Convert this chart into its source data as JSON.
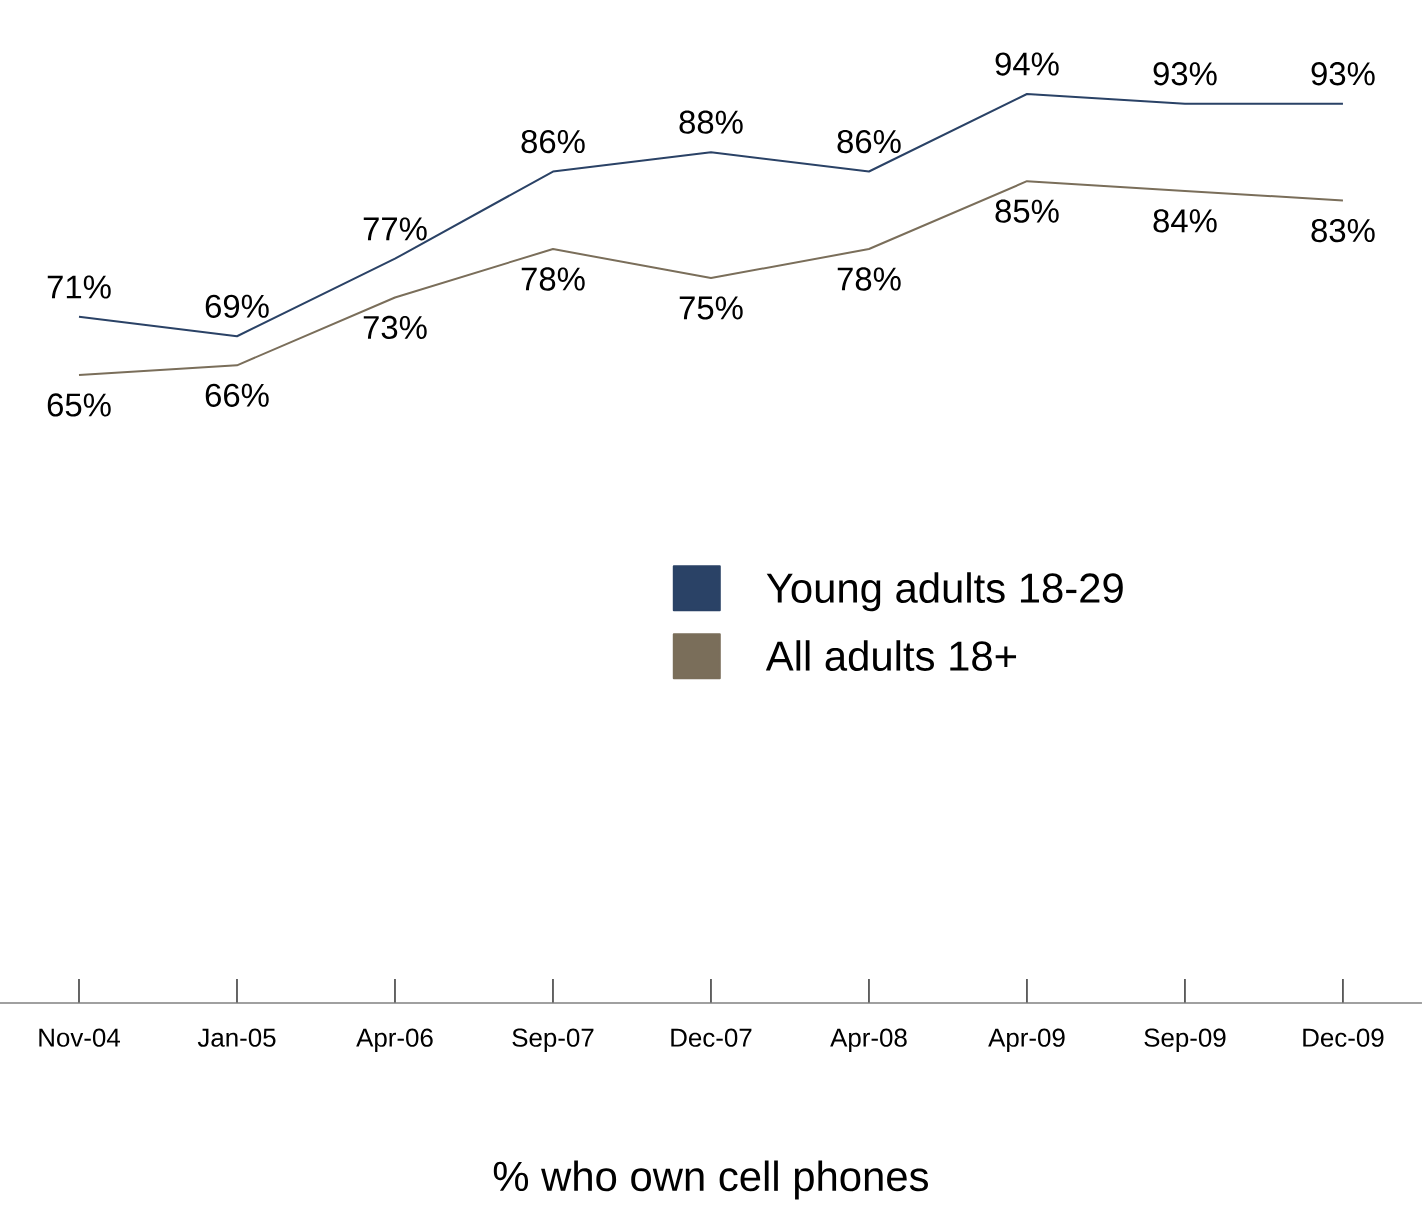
{
  "chart_data": {
    "type": "line",
    "xlabel": "% who own cell phones",
    "categories": [
      "Nov-04",
      "Jan-05",
      "Apr-06",
      "Sep-07",
      "Dec-07",
      "Apr-08",
      "Apr-09",
      "Sep-09",
      "Dec-09"
    ],
    "series": [
      {
        "name": "Young adults 18-29",
        "color": "#2a4266",
        "values": [
          71,
          69,
          77,
          86,
          88,
          86,
          94,
          93,
          93
        ],
        "value_labels": [
          "71%",
          "69%",
          "77%",
          "86%",
          "88%",
          "86%",
          "94%",
          "93%",
          "93%"
        ]
      },
      {
        "name": "All adults 18+",
        "color": "#7a6e5a",
        "values": [
          65,
          66,
          73,
          78,
          75,
          78,
          85,
          84,
          83
        ],
        "value_labels": [
          "65%",
          "66%",
          "73%",
          "78%",
          "75%",
          "78%",
          "85%",
          "84%",
          "83%"
        ]
      }
    ],
    "tick_labels": "x",
    "legend": "right",
    "grid": false,
    "marker": "none",
    "line_style": "solid"
  }
}
